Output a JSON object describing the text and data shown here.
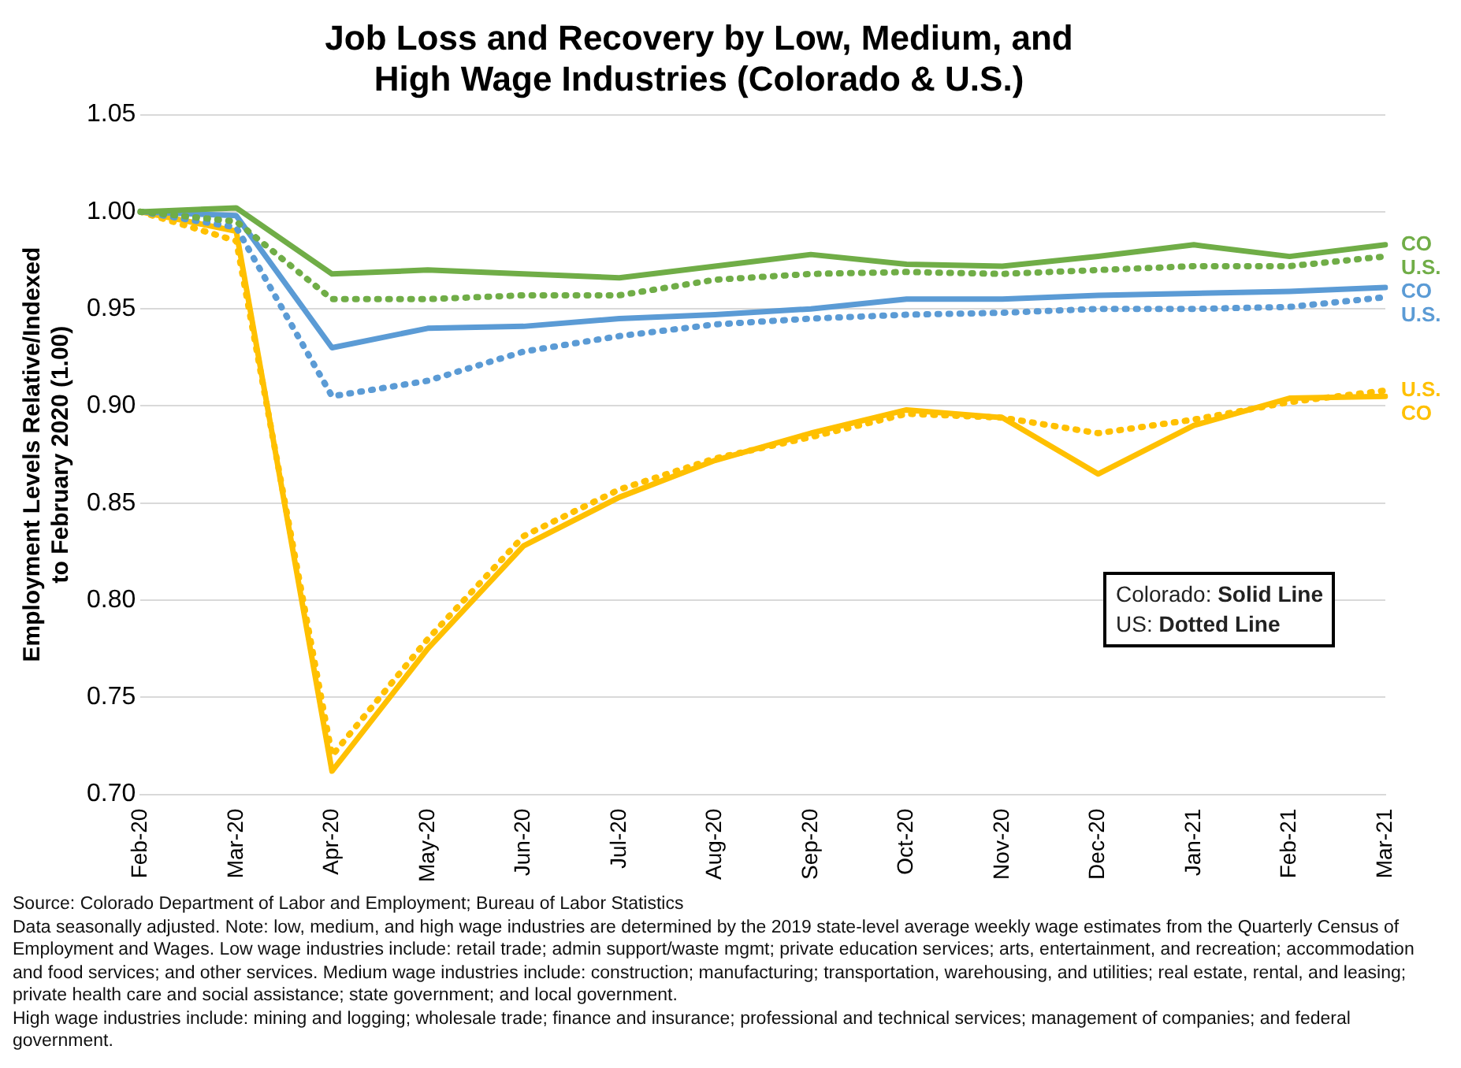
{
  "chart_data": {
    "type": "line",
    "title": "Job Loss and Recovery by Low, Medium, and High Wage Industries (Colorado & U.S.)",
    "ylabel": "Employment Levels Relative/Indexed to February 2020 (1.00)",
    "categories": [
      "Feb-20",
      "Mar-20",
      "Apr-20",
      "May-20",
      "Jun-20",
      "Jul-20",
      "Aug-20",
      "Sep-20",
      "Oct-20",
      "Nov-20",
      "Dec-20",
      "Jan-21",
      "Feb-21",
      "Mar-21"
    ],
    "series": [
      {
        "name": "CO",
        "color": "#70ad47",
        "line_style": "solid",
        "values": [
          1.0,
          1.002,
          0.968,
          0.97,
          0.968,
          0.966,
          0.972,
          0.978,
          0.973,
          0.972,
          0.977,
          0.983,
          0.977,
          0.983
        ]
      },
      {
        "name": "U.S.",
        "color": "#70ad47",
        "line_style": "dotted",
        "values": [
          1.0,
          0.995,
          0.955,
          0.955,
          0.957,
          0.957,
          0.965,
          0.968,
          0.969,
          0.968,
          0.97,
          0.972,
          0.972,
          0.977
        ]
      },
      {
        "name": "CO",
        "color": "#5b9bd5",
        "line_style": "solid",
        "values": [
          1.0,
          0.998,
          0.93,
          0.94,
          0.941,
          0.945,
          0.947,
          0.95,
          0.955,
          0.955,
          0.957,
          0.958,
          0.959,
          0.961
        ]
      },
      {
        "name": "U.S.",
        "color": "#5b9bd5",
        "line_style": "dotted",
        "values": [
          1.0,
          0.992,
          0.905,
          0.913,
          0.928,
          0.936,
          0.942,
          0.945,
          0.947,
          0.948,
          0.95,
          0.95,
          0.951,
          0.956
        ]
      },
      {
        "name": "U.S.",
        "color": "#ffc000",
        "line_style": "dotted",
        "values": [
          1.0,
          0.985,
          0.72,
          0.78,
          0.833,
          0.857,
          0.873,
          0.884,
          0.896,
          0.894,
          0.886,
          0.893,
          0.902,
          0.908
        ]
      },
      {
        "name": "CO",
        "color": "#ffc000",
        "line_style": "solid",
        "values": [
          1.0,
          0.99,
          0.712,
          0.775,
          0.828,
          0.853,
          0.872,
          0.886,
          0.898,
          0.894,
          0.865,
          0.89,
          0.904,
          0.905
        ]
      }
    ],
    "ylim": [
      0.7,
      1.05
    ],
    "yticks": [
      {
        "value": 0.7,
        "label": "0.70"
      },
      {
        "value": 0.75,
        "label": "0.75"
      },
      {
        "value": 0.8,
        "label": "0.80"
      },
      {
        "value": 0.85,
        "label": "0.85"
      },
      {
        "value": 0.9,
        "label": "0.90"
      },
      {
        "value": 0.95,
        "label": "0.95"
      },
      {
        "value": 1.0,
        "label": "1.00"
      },
      {
        "value": 1.05,
        "label": "1.05"
      }
    ],
    "grid": "y",
    "legend": false,
    "marker": "none",
    "annotations": [
      "Colorado: Solid Line",
      "US: Dotted Line",
      "Source: Colorado Department of Labor and Employment; Bureau of Labor Statistics",
      "Data seasonally adjusted. Note: low, medium, and high wage industries are determined by the 2019 state-level average weekly wage estimates from the Quarterly Census of Employment and Wages. Low wage industries include: retail trade; admin support/waste mgmt; private education services; arts, entertainment, and recreation; accommodation and food services; and other services. Medium wage industries include: construction; manufacturing; transportation, warehousing, and utilities; real estate, rental, and leasing; private health care and social assistance; state government; and local government.",
      "High wage industries include: mining and logging; wholesale trade; finance and insurance; professional and technical services; management of companies; and federal government."
    ]
  }
}
